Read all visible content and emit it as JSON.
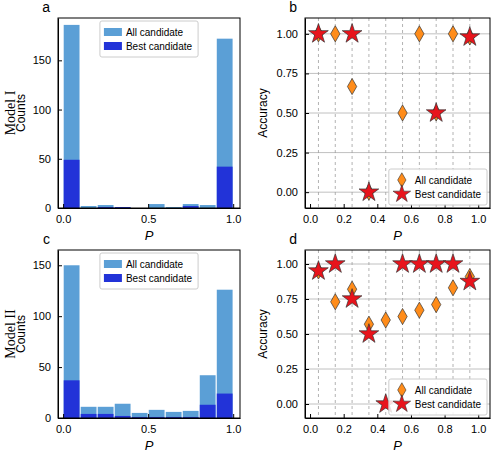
{
  "chart_data": [
    {
      "type": "histogram",
      "title": "a",
      "annotation": "Model I",
      "x_label": "P",
      "y_label": "Counts",
      "bins": [
        0,
        0.1,
        0.2,
        0.3,
        0.4,
        0.5,
        0.6,
        0.7,
        0.8,
        0.9,
        1.0
      ],
      "series": [
        {
          "name": "All candidate",
          "color": "#5b9fd6",
          "values": [
            186,
            2,
            3,
            1,
            0,
            4,
            1,
            4,
            3,
            172
          ]
        },
        {
          "name": "Best candidate",
          "color": "#2233d8",
          "values": [
            49,
            0,
            1,
            1,
            0,
            0,
            0,
            2,
            0,
            42
          ]
        }
      ],
      "xlim": [
        -0.03,
        1.04
      ],
      "xticks": [
        {
          "value": 0,
          "label": "0.0"
        },
        {
          "value": 0.5,
          "label": "0.5"
        },
        {
          "value": 1,
          "label": "1.0"
        }
      ],
      "ylim": [
        0,
        193
      ],
      "yticks": [
        0,
        50,
        100,
        150
      ],
      "legend": "upper center"
    },
    {
      "type": "scatter",
      "title": "b",
      "x_label": "P",
      "y_label": "Accuracy",
      "x": [
        0.05,
        0.15,
        0.25,
        0.35,
        0.45,
        0.55,
        0.65,
        0.75,
        0.85,
        0.95
      ],
      "series": [
        {
          "name": "All candidate",
          "color": "#ff8c1a",
          "marker": "diamond",
          "values": [
            1.0,
            1.0,
            0.667,
            0.0,
            null,
            0.5,
            1.0,
            0.5,
            1.0,
            0.98
          ]
        },
        {
          "name": "Best candidate",
          "color": "#e8141c",
          "marker": "star",
          "values": [
            1.0,
            null,
            1.0,
            0.0,
            null,
            null,
            null,
            0.5,
            null,
            0.98
          ]
        }
      ],
      "xlim": [
        -0.03,
        1.07
      ],
      "xticks": [
        {
          "value": 0,
          "label": "0.0"
        },
        {
          "value": 0.2,
          "label": "0.2"
        },
        {
          "value": 0.4,
          "label": "0.4"
        },
        {
          "value": 0.6,
          "label": "0.6"
        },
        {
          "value": 0.8,
          "label": "0.8"
        },
        {
          "value": 1,
          "label": "1.0"
        }
      ],
      "ylim": [
        -0.1,
        1.1
      ],
      "yticks": [
        {
          "value": 0,
          "label": "0.00"
        },
        {
          "value": 0.25,
          "label": "0.25"
        },
        {
          "value": 0.5,
          "label": "0.50"
        },
        {
          "value": 0.75,
          "label": "0.75"
        },
        {
          "value": 1,
          "label": "1.00"
        }
      ],
      "grid": true,
      "legend": "lower right"
    },
    {
      "type": "histogram",
      "title": "c",
      "annotation": "Model II",
      "x_label": "P",
      "y_label": "Counts",
      "bins": [
        0,
        0.1,
        0.2,
        0.3,
        0.4,
        0.5,
        0.6,
        0.7,
        0.8,
        0.9,
        1.0
      ],
      "series": [
        {
          "name": "All candidate",
          "color": "#5b9fd6",
          "values": [
            150,
            11,
            11,
            14,
            5,
            8,
            6,
            7,
            42,
            126
          ]
        },
        {
          "name": "Best candidate",
          "color": "#2233d8",
          "values": [
            37,
            4,
            4,
            2,
            1,
            1,
            1,
            1,
            13,
            24
          ]
        }
      ],
      "xlim": [
        -0.03,
        1.04
      ],
      "xticks": [
        {
          "value": 0,
          "label": "0.0"
        },
        {
          "value": 0.5,
          "label": "0.5"
        },
        {
          "value": 1,
          "label": "1.0"
        }
      ],
      "ylim": [
        0,
        165
      ],
      "yticks": [
        0,
        50,
        100,
        150
      ],
      "legend": "upper center"
    },
    {
      "type": "scatter",
      "title": "d",
      "x_label": "P",
      "y_label": "Accuracy",
      "x": [
        0.05,
        0.15,
        0.25,
        0.35,
        0.45,
        0.55,
        0.65,
        0.75,
        0.85,
        0.95
      ],
      "series": [
        {
          "name": "All candidate",
          "color": "#ff8c1a",
          "marker": "diamond",
          "values": [
            0.95,
            0.73,
            0.82,
            0.57,
            0.6,
            0.625,
            0.67,
            0.71,
            0.83,
            0.91
          ]
        },
        {
          "name": "Best candidate",
          "color": "#e8141c",
          "marker": "star",
          "values": [
            0.95,
            1.0,
            0.75,
            0.5,
            0.0,
            1.0,
            1.0,
            1.0,
            1.0,
            0.875
          ]
        }
      ],
      "xlim": [
        -0.03,
        1.07
      ],
      "xticks": [
        {
          "value": 0,
          "label": "0.0"
        },
        {
          "value": 0.2,
          "label": "0.2"
        },
        {
          "value": 0.4,
          "label": "0.4"
        },
        {
          "value": 0.6,
          "label": "0.6"
        },
        {
          "value": 0.8,
          "label": "0.8"
        },
        {
          "value": 1,
          "label": "1.0"
        }
      ],
      "ylim": [
        -0.1,
        1.1
      ],
      "yticks": [
        {
          "value": 0,
          "label": "0.00"
        },
        {
          "value": 0.25,
          "label": "0.25"
        },
        {
          "value": 0.5,
          "label": "0.50"
        },
        {
          "value": 0.75,
          "label": "0.75"
        },
        {
          "value": 1,
          "label": "1.00"
        }
      ],
      "grid": true,
      "legend": "lower right"
    }
  ]
}
